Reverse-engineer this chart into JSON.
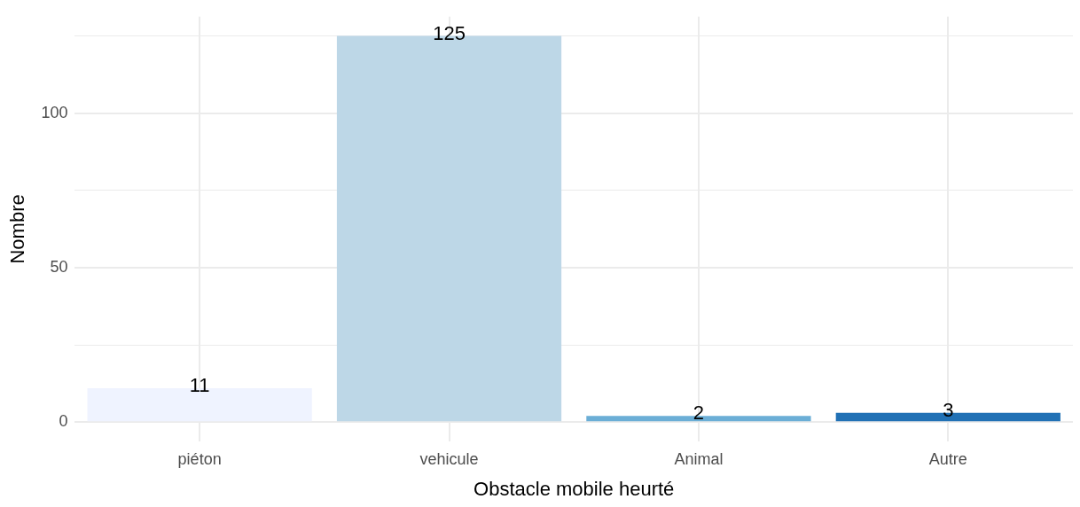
{
  "chart_data": {
    "type": "bar",
    "xlabel": "Obstacle mobile heurté",
    "ylabel": "Nombre",
    "categories": [
      "piéton",
      "vehicule",
      "Animal",
      "Autre"
    ],
    "values": [
      11,
      125,
      2,
      3
    ],
    "colors": [
      "#eff3ff",
      "#bdd7e7",
      "#6baed6",
      "#2171b5"
    ],
    "ylim": [
      -6.25,
      131.25
    ],
    "yticks": [
      0,
      {
        "value": 25,
        "label": null
      },
      50,
      {
        "value": 75,
        "label": null
      },
      100,
      {
        "value": 125,
        "label": null
      }
    ],
    "grid": true,
    "data_labels": true
  }
}
